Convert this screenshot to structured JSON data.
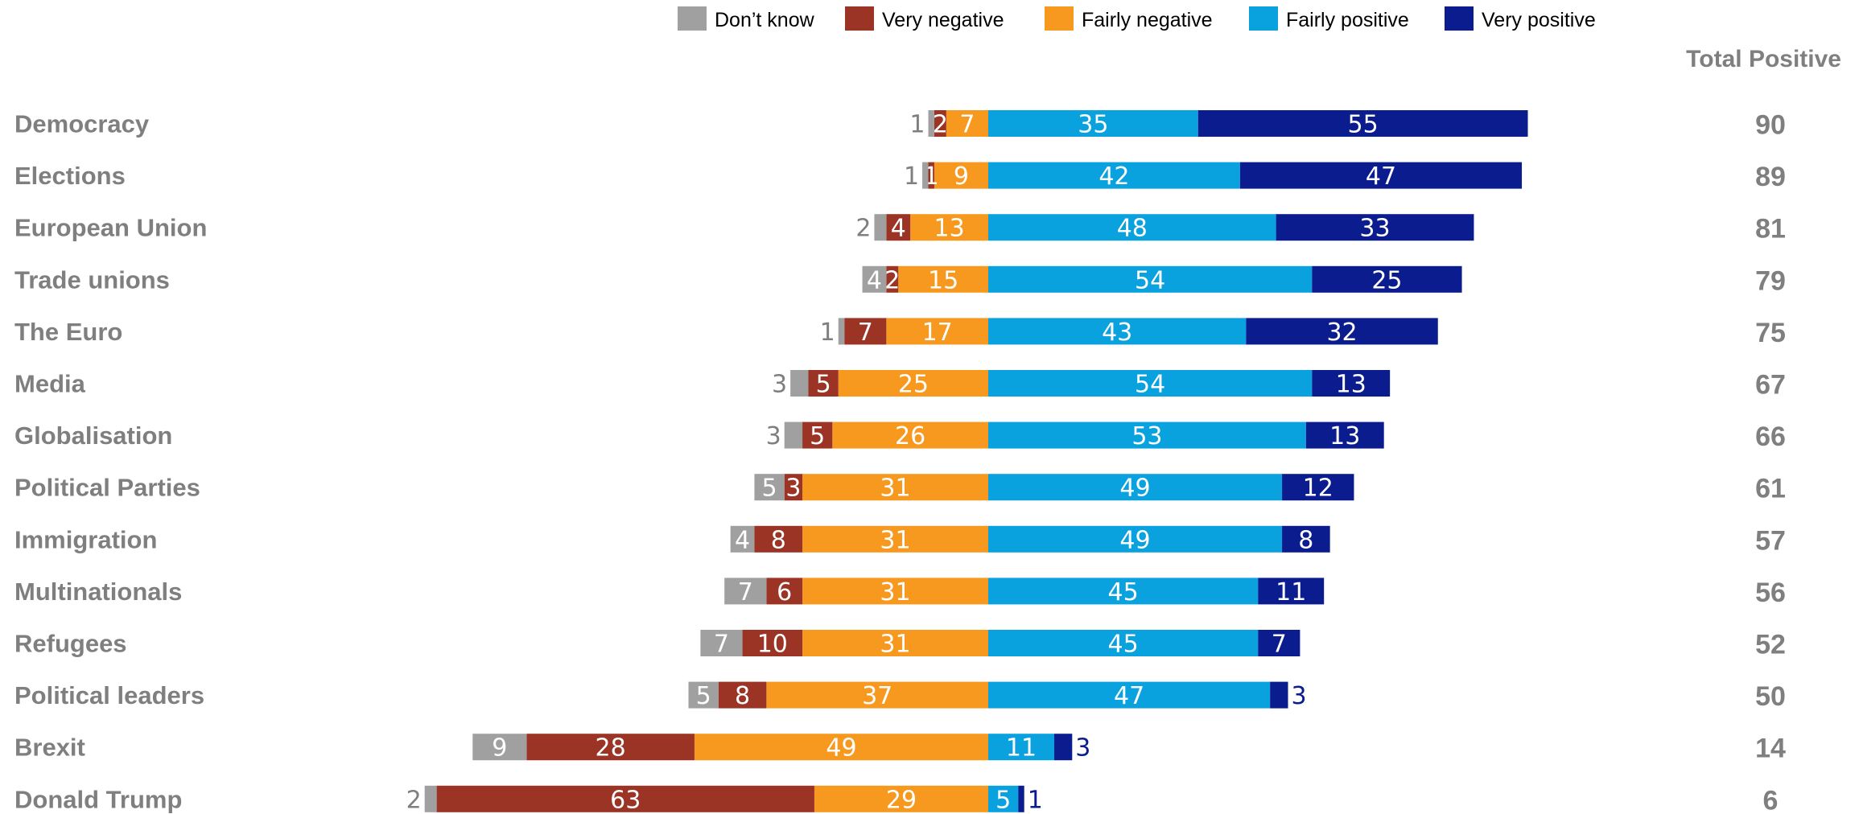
{
  "chart_data": {
    "type": "bar",
    "orientation": "horizontal",
    "stacked": "diverging",
    "title": "",
    "xlabel": "",
    "ylabel": "",
    "legend_position": "top",
    "grid": false,
    "total_header": "Total Positive",
    "categories": [
      "Democracy",
      "Elections",
      "European Union",
      "Trade unions",
      "The Euro",
      "Media",
      "Globalisation",
      "Political Parties",
      "Immigration",
      "Multinationals",
      "Refugees",
      "Political leaders",
      "Brexit",
      "Donald Trump"
    ],
    "series": [
      {
        "name": "Don’t know",
        "color": "#a0a0a0",
        "values": [
          1,
          1,
          2,
          4,
          1,
          3,
          3,
          5,
          4,
          7,
          7,
          5,
          9,
          2
        ]
      },
      {
        "name": "Very negative",
        "color": "#9b3425",
        "values": [
          2,
          1,
          4,
          2,
          7,
          5,
          5,
          3,
          8,
          6,
          10,
          8,
          28,
          63
        ]
      },
      {
        "name": "Fairly negative",
        "color": "#f7991f",
        "values": [
          7,
          9,
          13,
          15,
          17,
          25,
          26,
          31,
          31,
          31,
          31,
          37,
          49,
          29
        ]
      },
      {
        "name": "Fairly positive",
        "color": "#0aa1df",
        "values": [
          35,
          42,
          48,
          54,
          43,
          54,
          53,
          49,
          49,
          45,
          45,
          47,
          11,
          5
        ]
      },
      {
        "name": "Very positive",
        "color": "#0b1c8f",
        "values": [
          55,
          47,
          33,
          25,
          32,
          13,
          13,
          12,
          8,
          11,
          7,
          3,
          3,
          1
        ]
      }
    ],
    "total_positive": [
      90,
      89,
      81,
      79,
      75,
      67,
      66,
      61,
      57,
      56,
      52,
      50,
      14,
      6
    ]
  }
}
